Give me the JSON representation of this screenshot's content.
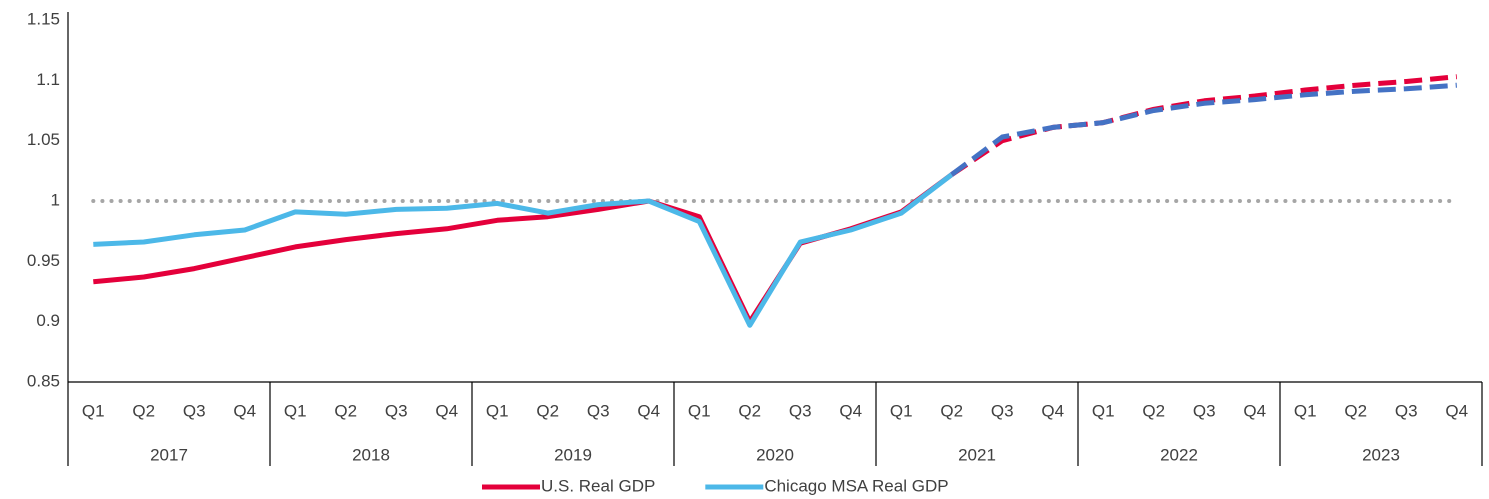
{
  "chart_data": {
    "type": "line",
    "categories": [
      "Q1",
      "Q2",
      "Q3",
      "Q4",
      "Q1",
      "Q2",
      "Q3",
      "Q4",
      "Q1",
      "Q2",
      "Q3",
      "Q4",
      "Q1",
      "Q2",
      "Q3",
      "Q4",
      "Q1",
      "Q2",
      "Q3",
      "Q4",
      "Q1",
      "Q2",
      "Q3",
      "Q4",
      "Q1",
      "Q2",
      "Q3",
      "Q4"
    ],
    "year_groups": [
      "2017",
      "2018",
      "2019",
      "2020",
      "2021",
      "2022",
      "2023"
    ],
    "forecast_from": 17,
    "series": [
      {
        "name": "U.S. Real GDP",
        "color": "#e4003b",
        "forecast_color": "#e4003b",
        "values": [
          0.933,
          0.937,
          0.944,
          0.953,
          0.962,
          0.968,
          0.973,
          0.977,
          0.984,
          0.987,
          0.993,
          1.0,
          0.987,
          0.9,
          0.965,
          0.977,
          0.991,
          1.022,
          1.05,
          1.061,
          1.065,
          1.076,
          1.083,
          1.087,
          1.092,
          1.096,
          1.099,
          1.103
        ]
      },
      {
        "name": "Chicago MSA Real GDP",
        "color": "#4cb8e8",
        "forecast_color": "#4472c4",
        "values": [
          0.964,
          0.966,
          0.972,
          0.976,
          0.991,
          0.989,
          0.993,
          0.994,
          0.998,
          0.99,
          0.997,
          1.0,
          0.983,
          0.897,
          0.966,
          0.976,
          0.99,
          1.022,
          1.053,
          1.061,
          1.065,
          1.075,
          1.081,
          1.084,
          1.088,
          1.091,
          1.093,
          1.096
        ]
      }
    ],
    "reference_line": 1,
    "ylim": [
      0.85,
      1.15
    ],
    "yticks": [
      0.85,
      0.9,
      0.95,
      1,
      1.05,
      1.1,
      1.15
    ],
    "legend": "bottom"
  }
}
